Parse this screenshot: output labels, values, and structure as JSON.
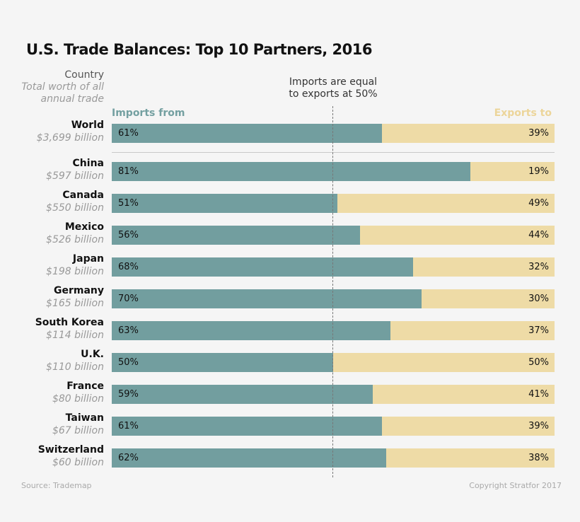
{
  "chart_data": {
    "type": "bar",
    "stacked": true,
    "orientation": "horizontal",
    "title": "U.S. Trade Balances: Top 10 Partners, 2016",
    "category_header": "Country",
    "category_subheader": "Total worth of all annual trade",
    "annotation": "Imports are equal to exports at 50%",
    "reference_line": 50,
    "xlim": [
      0,
      100
    ],
    "series": [
      {
        "name": "Imports from",
        "color": "#729e9f"
      },
      {
        "name": "Exports to",
        "color": "#eedba6"
      }
    ],
    "rows": [
      {
        "country": "World",
        "total": "$3,699 billion",
        "imports": 61,
        "exports": 39
      },
      {
        "country": "China",
        "total": "$597 billion",
        "imports": 81,
        "exports": 19
      },
      {
        "country": "Canada",
        "total": "$550 billion",
        "imports": 51,
        "exports": 49
      },
      {
        "country": "Mexico",
        "total": "$526 billion",
        "imports": 56,
        "exports": 44
      },
      {
        "country": "Japan",
        "total": "$198 billion",
        "imports": 68,
        "exports": 32
      },
      {
        "country": "Germany",
        "total": "$165 billion",
        "imports": 70,
        "exports": 30
      },
      {
        "country": "South Korea",
        "total": "$114 billion",
        "imports": 63,
        "exports": 37
      },
      {
        "country": "U.K.",
        "total": "$110 billion",
        "imports": 50,
        "exports": 50
      },
      {
        "country": "France",
        "total": "$80 billion",
        "imports": 59,
        "exports": 41
      },
      {
        "country": "Taiwan",
        "total": "$67 billion",
        "imports": 61,
        "exports": 39
      },
      {
        "country": "Switzerland",
        "total": "$60 billion",
        "imports": 62,
        "exports": 38
      }
    ],
    "source": "Source: Trademap",
    "copyright": "Copyright Stratfor 2017"
  }
}
